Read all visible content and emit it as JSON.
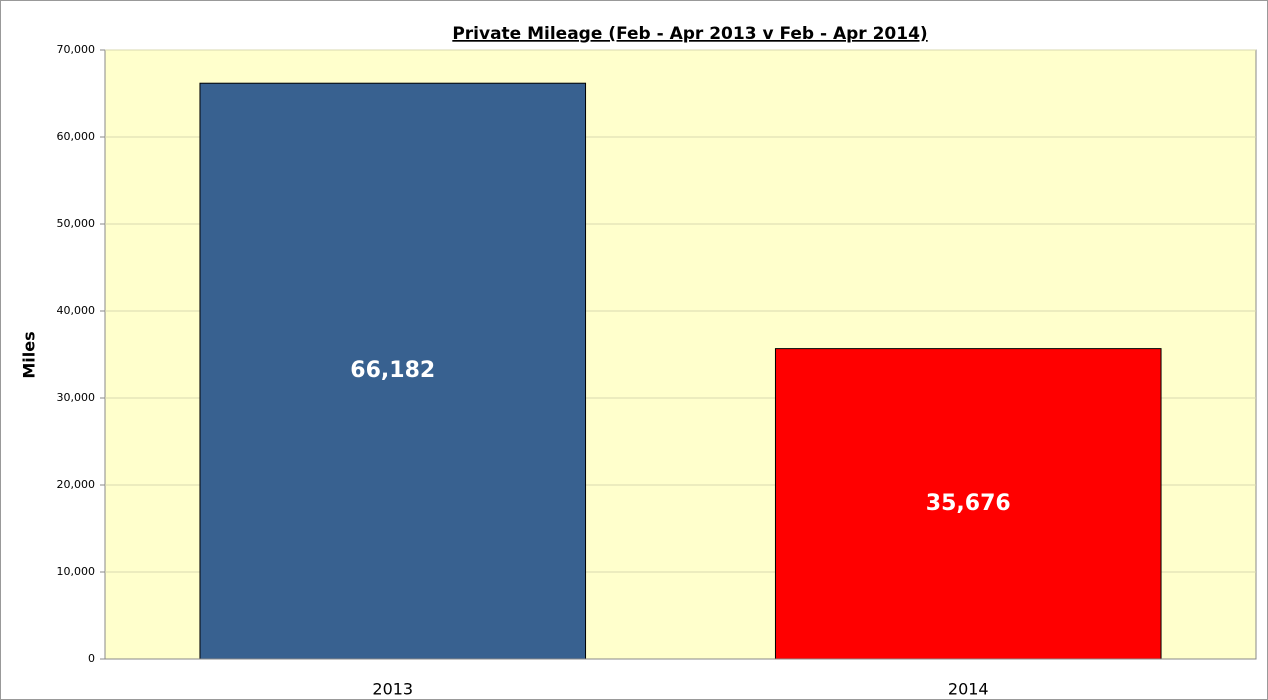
{
  "chart_data": {
    "type": "bar",
    "title": "Private Mileage (Feb - Apr 2013 v Feb - Apr 2014)",
    "y_label": "Miles",
    "categories": [
      "2013",
      "2014"
    ],
    "values": [
      66182,
      35676
    ],
    "value_labels": [
      "66,182",
      "35,676"
    ],
    "colors": [
      "#386190",
      "#ff0000"
    ],
    "ylim": [
      0,
      70000
    ],
    "yticks": [
      0,
      {
        "value": 10000,
        "label": "10,000"
      },
      {
        "value": 20000,
        "label": "20,000"
      },
      {
        "value": 30000,
        "label": "30,000"
      },
      {
        "value": 40000,
        "label": "40,000"
      },
      {
        "value": 50000,
        "label": "50,000"
      },
      {
        "value": 60000,
        "label": "60,000"
      },
      {
        "value": 70000,
        "label": "70,000"
      }
    ],
    "grid": true
  }
}
